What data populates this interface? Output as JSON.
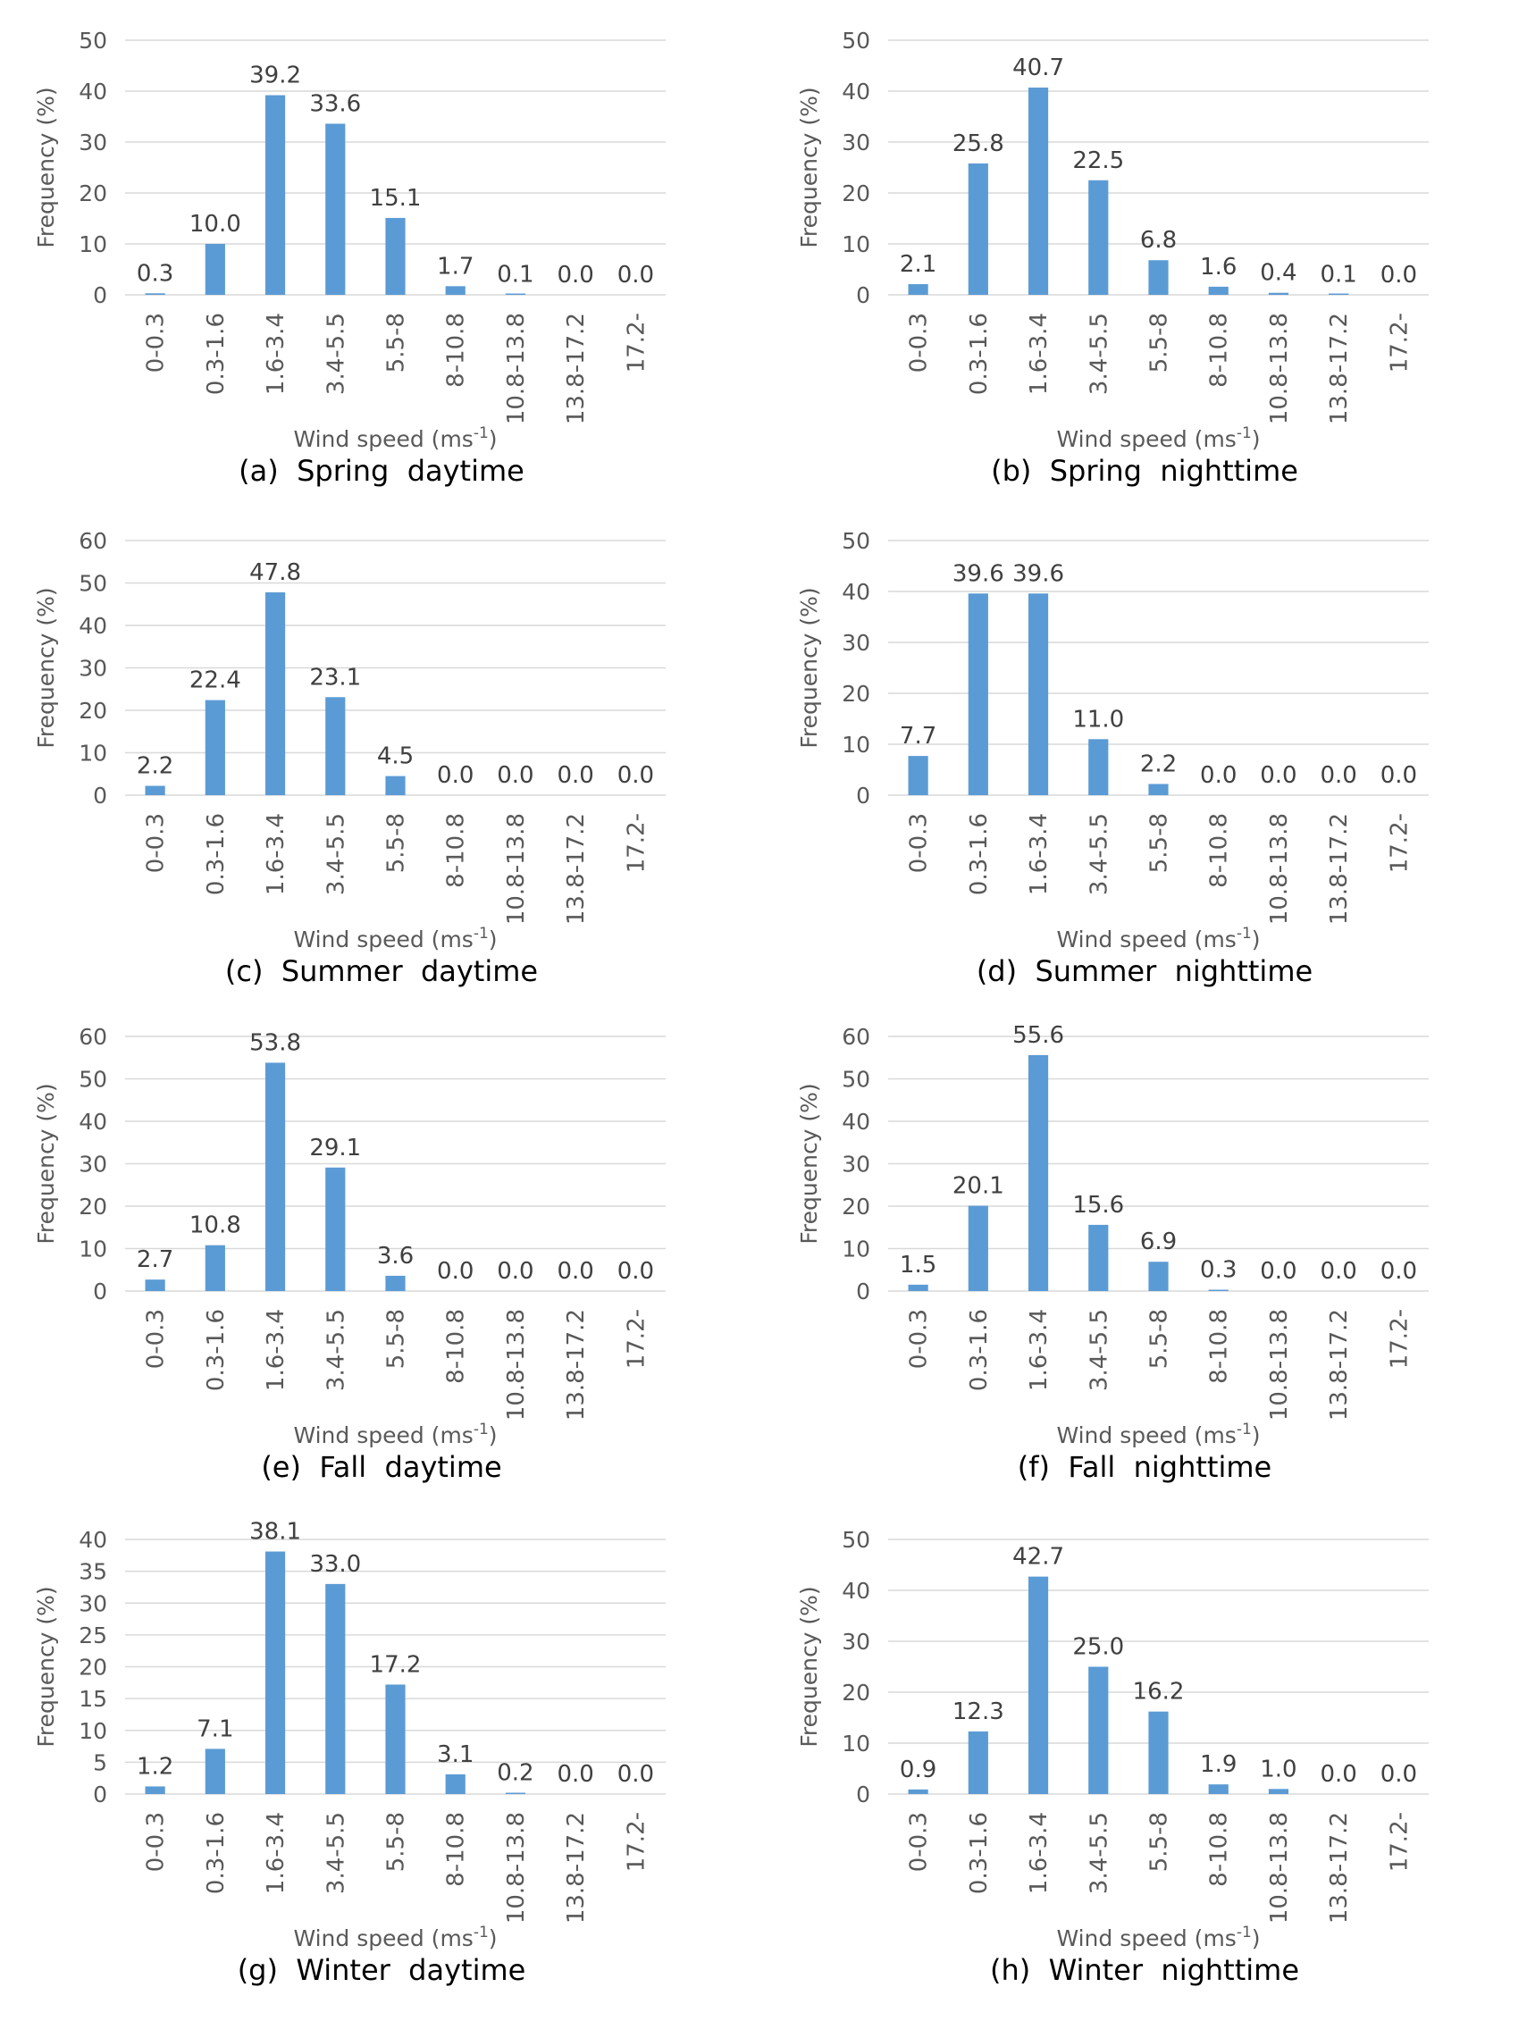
{
  "colors": {
    "bar": "#5b9bd5",
    "grid": "#d9d9d9",
    "text": "#595959"
  },
  "chart_data": [
    {
      "id": "a",
      "type": "bar",
      "caption": "(a)  Spring  daytime",
      "categories": [
        "0-0.3",
        "0.3-1.6",
        "1.6-3.4",
        "3.4-5.5",
        "5.5-8",
        "8-10.8",
        "10.8-13.8",
        "13.8-17.2",
        "17.2-"
      ],
      "values": [
        0.3,
        10.0,
        39.2,
        33.6,
        15.1,
        1.7,
        0.1,
        0.0,
        0.0
      ],
      "labels": [
        "0.3",
        "10.0",
        "39.2",
        "33.6",
        "15.1",
        "1.7",
        "0.1",
        "0.0",
        "0.0"
      ],
      "ylim": [
        0,
        50
      ],
      "yticks": [
        0,
        10,
        20,
        30,
        40,
        50
      ],
      "ylabel": "Frequency (%)",
      "xlabel": "Wind speed (ms",
      "xlabel_sup": "-1",
      "xlabel_end": ")"
    },
    {
      "id": "b",
      "type": "bar",
      "caption": "(b)  Spring  nighttime",
      "categories": [
        "0-0.3",
        "0.3-1.6",
        "1.6-3.4",
        "3.4-5.5",
        "5.5-8",
        "8-10.8",
        "10.8-13.8",
        "13.8-17.2",
        "17.2-"
      ],
      "values": [
        2.1,
        25.8,
        40.7,
        22.5,
        6.8,
        1.6,
        0.4,
        0.1,
        0.0
      ],
      "labels": [
        "2.1",
        "25.8",
        "40.7",
        "22.5",
        "6.8",
        "1.6",
        "0.4",
        "0.1",
        "0.0"
      ],
      "ylim": [
        0,
        50
      ],
      "yticks": [
        0,
        10,
        20,
        30,
        40,
        50
      ],
      "ylabel": "Frequency (%)",
      "xlabel": "Wind speed (ms",
      "xlabel_sup": "-1",
      "xlabel_end": ")"
    },
    {
      "id": "c",
      "type": "bar",
      "caption": "(c)  Summer  daytime",
      "categories": [
        "0-0.3",
        "0.3-1.6",
        "1.6-3.4",
        "3.4-5.5",
        "5.5-8",
        "8-10.8",
        "10.8-13.8",
        "13.8-17.2",
        "17.2-"
      ],
      "values": [
        2.2,
        22.4,
        47.8,
        23.1,
        4.5,
        0.0,
        0.0,
        0.0,
        0.0
      ],
      "labels": [
        "2.2",
        "22.4",
        "47.8",
        "23.1",
        "4.5",
        "0.0",
        "0.0",
        "0.0",
        "0.0"
      ],
      "ylim": [
        0,
        60
      ],
      "yticks": [
        0,
        10,
        20,
        30,
        40,
        50,
        60
      ],
      "ylabel": "Frequency (%)",
      "xlabel": "Wind speed (ms",
      "xlabel_sup": "-1",
      "xlabel_end": ")"
    },
    {
      "id": "d",
      "type": "bar",
      "caption": "(d)  Summer  nighttime",
      "categories": [
        "0-0.3",
        "0.3-1.6",
        "1.6-3.4",
        "3.4-5.5",
        "5.5-8",
        "8-10.8",
        "10.8-13.8",
        "13.8-17.2",
        "17.2-"
      ],
      "values": [
        7.7,
        39.6,
        39.6,
        11.0,
        2.2,
        0.0,
        0.0,
        0.0,
        0.0
      ],
      "labels": [
        "7.7",
        "39.6",
        "39.6",
        "11.0",
        "2.2",
        "0.0",
        "0.0",
        "0.0",
        "0.0"
      ],
      "ylim": [
        0,
        50
      ],
      "yticks": [
        0,
        10,
        20,
        30,
        40,
        50
      ],
      "ylabel": "Frequency (%)",
      "xlabel": "Wind speed (ms",
      "xlabel_sup": "-1",
      "xlabel_end": ")"
    },
    {
      "id": "e",
      "type": "bar",
      "caption": "(e)  Fall  daytime",
      "categories": [
        "0-0.3",
        "0.3-1.6",
        "1.6-3.4",
        "3.4-5.5",
        "5.5-8",
        "8-10.8",
        "10.8-13.8",
        "13.8-17.2",
        "17.2-"
      ],
      "values": [
        2.7,
        10.8,
        53.8,
        29.1,
        3.6,
        0.0,
        0.0,
        0.0,
        0.0
      ],
      "labels": [
        "2.7",
        "10.8",
        "53.8",
        "29.1",
        "3.6",
        "0.0",
        "0.0",
        "0.0",
        "0.0"
      ],
      "ylim": [
        0,
        60
      ],
      "yticks": [
        0,
        10,
        20,
        30,
        40,
        50,
        60
      ],
      "ylabel": "Frequency (%)",
      "xlabel": "Wind speed (ms",
      "xlabel_sup": "-1",
      "xlabel_end": ")"
    },
    {
      "id": "f",
      "type": "bar",
      "caption": "(f)  Fall  nighttime",
      "categories": [
        "0-0.3",
        "0.3-1.6",
        "1.6-3.4",
        "3.4-5.5",
        "5.5-8",
        "8-10.8",
        "10.8-13.8",
        "13.8-17.2",
        "17.2-"
      ],
      "values": [
        1.5,
        20.1,
        55.6,
        15.6,
        6.9,
        0.3,
        0.0,
        0.0,
        0.0
      ],
      "labels": [
        "1.5",
        "20.1",
        "55.6",
        "15.6",
        "6.9",
        "0.3",
        "0.0",
        "0.0",
        "0.0"
      ],
      "ylim": [
        0,
        60
      ],
      "yticks": [
        0,
        10,
        20,
        30,
        40,
        50,
        60
      ],
      "ylabel": "Frequency (%)",
      "xlabel": "Wind speed (ms",
      "xlabel_sup": "-1",
      "xlabel_end": ")"
    },
    {
      "id": "g",
      "type": "bar",
      "caption": "(g)  Winter  daytime",
      "categories": [
        "0-0.3",
        "0.3-1.6",
        "1.6-3.4",
        "3.4-5.5",
        "5.5-8",
        "8-10.8",
        "10.8-13.8",
        "13.8-17.2",
        "17.2-"
      ],
      "values": [
        1.2,
        7.1,
        38.1,
        33.0,
        17.2,
        3.1,
        0.2,
        0.0,
        0.0
      ],
      "labels": [
        "1.2",
        "7.1",
        "38.1",
        "33.0",
        "17.2",
        "3.1",
        "0.2",
        "0.0",
        "0.0"
      ],
      "ylim": [
        0,
        40
      ],
      "yticks": [
        0,
        5,
        10,
        15,
        20,
        25,
        30,
        35,
        40
      ],
      "ylabel": "Frequency (%)",
      "xlabel": "Wind speed (ms",
      "xlabel_sup": "-1",
      "xlabel_end": ")"
    },
    {
      "id": "h",
      "type": "bar",
      "caption": "(h)  Winter  nighttime",
      "categories": [
        "0-0.3",
        "0.3-1.6",
        "1.6-3.4",
        "3.4-5.5",
        "5.5-8",
        "8-10.8",
        "10.8-13.8",
        "13.8-17.2",
        "17.2-"
      ],
      "values": [
        0.9,
        12.3,
        42.7,
        25.0,
        16.2,
        1.9,
        1.0,
        0.0,
        0.0
      ],
      "labels": [
        "0.9",
        "12.3",
        "42.7",
        "25.0",
        "16.2",
        "1.9",
        "1.0",
        "0.0",
        "0.0"
      ],
      "ylim": [
        0,
        50
      ],
      "yticks": [
        0,
        10,
        20,
        30,
        40,
        50
      ],
      "ylabel": "Frequency (%)",
      "xlabel": "Wind speed (ms",
      "xlabel_sup": "-1",
      "xlabel_end": ")"
    }
  ]
}
